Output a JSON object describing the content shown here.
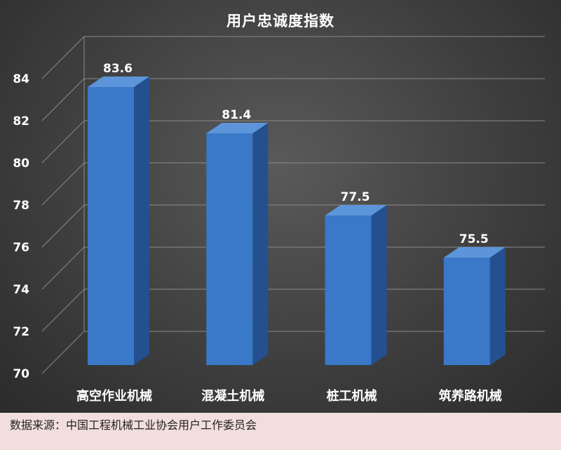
{
  "chart_data": {
    "type": "bar",
    "title": "用户忠诚度指数",
    "categories": [
      "高空作业机械",
      "混凝土机械",
      "桩工机械",
      "筑养路机械"
    ],
    "values": [
      83.6,
      81.4,
      77.5,
      75.5
    ],
    "data_labels": [
      "83.6",
      "81.4",
      "77.5",
      "75.5"
    ],
    "yticks": [
      70,
      72,
      74,
      76,
      78,
      80,
      82,
      84
    ],
    "ylim": [
      70,
      84
    ],
    "xlabel": "",
    "ylabel": "",
    "grid": true,
    "legend": "none",
    "colors": {
      "bar_front": "#3a78c8",
      "bar_side": "#24508f",
      "bar_top": "#5d95da",
      "grid": "#8a8a8a",
      "text": "#ffffff"
    }
  },
  "source": {
    "text": "数据来源：中国工程机械工业协会用户工作委员会",
    "background": "#f3dede"
  }
}
